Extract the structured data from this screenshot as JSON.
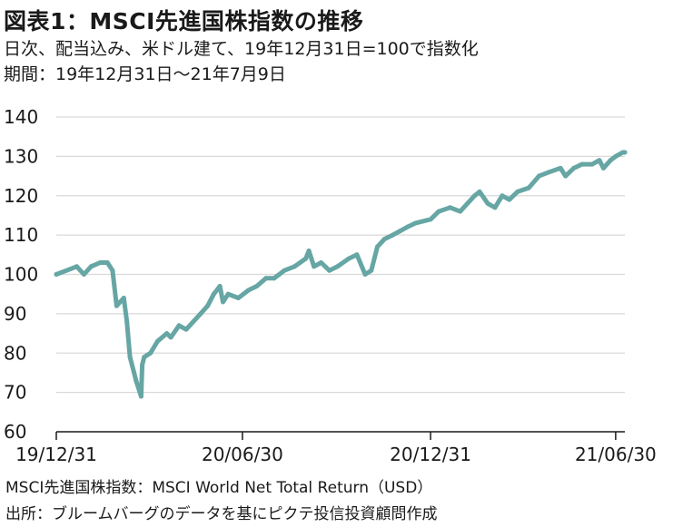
{
  "header": {
    "title": "図表1：MSCI先進国株指数の推移",
    "subtitle_1": "日次、配当込み、米ドル建て、19年12月31日=100で指数化",
    "subtitle_2": "期間：19年12月31日～21年7月9日"
  },
  "footer": {
    "note_1": "MSCI先進国株指数：MSCI World Net Total Return（USD）",
    "note_2": "出所：ブルームバーグのデータを基にピクテ投信投資顧問作成"
  },
  "colors": {
    "line": "#66a6a4",
    "grid": "#d9d9d9",
    "axis": "#1a1a1a"
  },
  "chart_data": {
    "type": "line",
    "title": "MSCI先進国株指数の推移",
    "xlabel": "",
    "ylabel": "",
    "ylim": [
      60,
      140
    ],
    "yticks": [
      60,
      70,
      80,
      90,
      100,
      110,
      120,
      130,
      140
    ],
    "xlim": [
      "2019-12-31",
      "2021-07-09"
    ],
    "xticks": [
      {
        "date": "2019-12-31",
        "label": "19/12/31"
      },
      {
        "date": "2020-06-30",
        "label": "20/06/30"
      },
      {
        "date": "2020-12-31",
        "label": "20/12/31"
      },
      {
        "date": "2021-06-30",
        "label": "21/06/30"
      }
    ],
    "grid": true,
    "legend": "none",
    "series": [
      {
        "x": [
          "2019-12-31",
          "2020-01-10",
          "2020-01-20",
          "2020-01-27",
          "2020-02-03",
          "2020-02-12",
          "2020-02-19",
          "2020-02-24",
          "2020-02-28",
          "2020-03-06",
          "2020-03-09",
          "2020-03-12",
          "2020-03-16",
          "2020-03-18",
          "2020-03-23",
          "2020-03-24",
          "2020-03-26",
          "2020-04-01",
          "2020-04-08",
          "2020-04-17",
          "2020-04-21",
          "2020-04-29",
          "2020-05-06",
          "2020-05-13",
          "2020-05-20",
          "2020-05-27",
          "2020-06-02",
          "2020-06-08",
          "2020-06-11",
          "2020-06-16",
          "2020-06-26",
          "2020-07-06",
          "2020-07-14",
          "2020-07-23",
          "2020-07-31",
          "2020-08-10",
          "2020-08-20",
          "2020-08-31",
          "2020-09-03",
          "2020-09-08",
          "2020-09-15",
          "2020-09-23",
          "2020-10-01",
          "2020-10-12",
          "2020-10-20",
          "2020-10-28",
          "2020-11-03",
          "2020-11-09",
          "2020-11-16",
          "2020-11-24",
          "2020-12-01",
          "2020-12-08",
          "2020-12-16",
          "2020-12-31",
          "2021-01-08",
          "2021-01-19",
          "2021-01-29",
          "2021-02-05",
          "2021-02-12",
          "2021-02-17",
          "2021-02-25",
          "2021-03-04",
          "2021-03-11",
          "2021-03-18",
          "2021-03-26",
          "2021-04-06",
          "2021-04-16",
          "2021-04-26",
          "2021-05-07",
          "2021-05-12",
          "2021-05-20",
          "2021-05-28",
          "2021-06-07",
          "2021-06-14",
          "2021-06-18",
          "2021-06-25",
          "2021-06-30",
          "2021-07-07",
          "2021-07-09"
        ],
        "values": [
          100,
          101,
          102,
          100,
          102,
          103,
          103,
          101,
          92,
          94,
          88,
          79,
          75,
          73,
          69,
          77,
          79,
          80,
          83,
          85,
          84,
          87,
          86,
          88,
          90,
          92,
          95,
          97,
          93,
          95,
          94,
          96,
          97,
          99,
          99,
          101,
          102,
          104,
          106,
          102,
          103,
          101,
          102,
          104,
          105,
          100,
          101,
          107,
          109,
          110,
          111,
          112,
          113,
          114,
          116,
          117,
          116,
          118,
          120,
          121,
          118,
          117,
          120,
          119,
          121,
          122,
          125,
          126,
          127,
          125,
          127,
          128,
          128,
          129,
          127,
          129,
          130,
          131,
          131
        ]
      }
    ]
  }
}
